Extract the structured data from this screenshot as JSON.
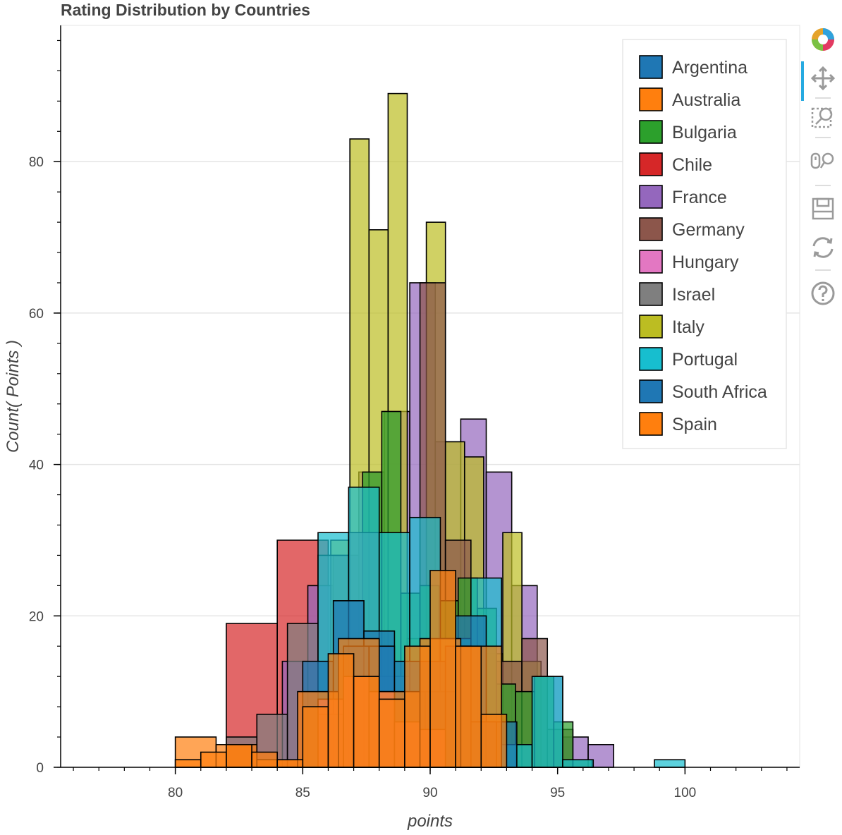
{
  "chart_data": {
    "type": "bar",
    "title": "Rating Distribution by Countries",
    "xlabel": "points",
    "ylabel": "Count( Points )",
    "xlim": [
      75.5,
      104.5
    ],
    "ylim": [
      0,
      98
    ],
    "xticks": [
      80,
      85,
      90,
      95,
      100
    ],
    "yticks": [
      0,
      20,
      40,
      60,
      80
    ],
    "grid": "horizontal",
    "legend_position": "top-right",
    "bar_outline": "#000000",
    "series": [
      {
        "name": "Chile",
        "color": "#d62728",
        "bins": [
          [
            82,
            84,
            19
          ],
          [
            84,
            86,
            30
          ]
        ]
      },
      {
        "name": "France",
        "color": "#9467bd",
        "bins": [
          [
            84.2,
            85.2,
            14
          ],
          [
            85.2,
            86.2,
            24
          ],
          [
            86.2,
            87.2,
            28
          ],
          [
            87.2,
            88.2,
            39
          ],
          [
            88.2,
            89.2,
            47
          ],
          [
            89.2,
            90.2,
            64
          ],
          [
            90.2,
            91.2,
            43
          ],
          [
            91.2,
            92.2,
            46
          ],
          [
            92.2,
            93.2,
            39
          ],
          [
            93.2,
            94.2,
            24
          ],
          [
            94.2,
            95.2,
            12
          ],
          [
            95.2,
            96.2,
            4
          ],
          [
            96.2,
            97.2,
            3
          ]
        ]
      },
      {
        "name": "Italy",
        "color": "#bcbd22",
        "bins": [
          [
            86.1,
            86.85,
            30
          ],
          [
            86.85,
            87.6,
            83
          ],
          [
            87.6,
            88.35,
            71
          ],
          [
            88.35,
            89.1,
            89
          ],
          [
            89.1,
            89.85,
            17
          ],
          [
            89.85,
            90.6,
            72
          ],
          [
            90.6,
            91.35,
            43
          ],
          [
            91.35,
            92.1,
            41
          ],
          [
            92.1,
            92.85,
            15
          ],
          [
            92.85,
            93.6,
            31
          ],
          [
            93.6,
            94.35,
            14
          ]
        ]
      },
      {
        "name": "Germany",
        "color": "#8c564b",
        "bins": [
          [
            89.6,
            90.6,
            64
          ],
          [
            90.6,
            91.6,
            30
          ],
          [
            91.6,
            92.6,
            16
          ],
          [
            92.6,
            93.6,
            14
          ],
          [
            93.6,
            94.6,
            17
          ],
          [
            94.6,
            95.6,
            5
          ]
        ]
      },
      {
        "name": "Bulgaria",
        "color": "#2ca02c",
        "bins": [
          [
            86.6,
            87.35,
            14
          ],
          [
            87.35,
            88.1,
            39
          ],
          [
            88.1,
            88.85,
            47
          ],
          [
            88.85,
            89.6,
            23
          ],
          [
            89.6,
            90.35,
            24
          ],
          [
            90.35,
            91.1,
            22
          ],
          [
            91.1,
            91.85,
            25
          ],
          [
            91.85,
            92.6,
            21
          ],
          [
            92.6,
            93.35,
            11
          ],
          [
            93.35,
            94.1,
            10
          ],
          [
            94.1,
            94.85,
            12
          ],
          [
            94.85,
            95.6,
            6
          ],
          [
            95.6,
            96.35,
            1
          ]
        ]
      },
      {
        "name": "Israel",
        "color": "#7f7f7f",
        "bins": [
          [
            82,
            83.2,
            4
          ],
          [
            83.2,
            84.4,
            7
          ],
          [
            84.4,
            85.6,
            19
          ],
          [
            85.6,
            86.8,
            28
          ],
          [
            86.8,
            88,
            31
          ],
          [
            88,
            89.2,
            12
          ],
          [
            89.2,
            90.4,
            7
          ]
        ]
      },
      {
        "name": "Portugal",
        "color": "#17becf",
        "bins": [
          [
            85.6,
            86.8,
            31
          ],
          [
            86.8,
            88,
            37
          ],
          [
            88,
            89.2,
            31
          ],
          [
            89.2,
            90.4,
            33
          ],
          [
            90.4,
            91.6,
            17
          ],
          [
            91.6,
            92.8,
            25
          ],
          [
            92.8,
            94,
            3
          ],
          [
            94,
            95.2,
            12
          ],
          [
            95.2,
            96.4,
            1
          ],
          [
            98.8,
            100,
            1
          ]
        ]
      },
      {
        "name": "Argentina",
        "color": "#1f77b4",
        "bins": [
          [
            85,
            86.2,
            14
          ],
          [
            86.2,
            87.4,
            22
          ],
          [
            87.4,
            88.6,
            18
          ],
          [
            88.6,
            89.8,
            10
          ],
          [
            89.8,
            91,
            10
          ],
          [
            91,
            92.2,
            20
          ],
          [
            92.2,
            93.4,
            6
          ]
        ]
      },
      {
        "name": "South Africa",
        "color": "#1f77b4",
        "bins": [
          [
            85.6,
            86.6,
            7
          ],
          [
            86.6,
            87.6,
            16
          ],
          [
            87.6,
            88.6,
            16
          ],
          [
            88.6,
            89.6,
            14
          ],
          [
            89.6,
            90.6,
            14
          ],
          [
            90.6,
            91.6,
            16
          ],
          [
            91.6,
            92.6,
            6
          ]
        ]
      },
      {
        "name": "Hungary",
        "color": "#e377c2",
        "bins": [
          [
            85.6,
            86.6,
            9
          ],
          [
            86.6,
            87.6,
            12
          ],
          [
            87.6,
            88.6,
            10
          ],
          [
            88.6,
            89.6,
            6
          ],
          [
            89.6,
            90.6,
            5
          ]
        ]
      },
      {
        "name": "Australia",
        "color": "#ff7f0e",
        "bins": [
          [
            80,
            81.6,
            4
          ],
          [
            81.6,
            83.2,
            3
          ],
          [
            83.2,
            84.8,
            1
          ],
          [
            84.8,
            86.4,
            10
          ],
          [
            86.4,
            88,
            17
          ],
          [
            88,
            89.6,
            10
          ],
          [
            89.6,
            91.2,
            17
          ],
          [
            91.2,
            92.8,
            16
          ]
        ]
      },
      {
        "name": "Spain",
        "color": "#ff7f0e",
        "bins": [
          [
            80,
            81,
            1
          ],
          [
            81,
            82,
            2
          ],
          [
            82,
            83,
            3
          ],
          [
            83,
            84,
            2
          ],
          [
            84,
            85,
            1
          ],
          [
            85,
            86,
            8
          ],
          [
            86,
            87,
            15
          ],
          [
            87,
            88,
            12
          ],
          [
            88,
            89,
            9
          ],
          [
            89,
            90,
            16
          ],
          [
            90,
            91,
            26
          ],
          [
            91,
            92,
            16
          ],
          [
            92,
            93,
            7
          ]
        ]
      }
    ]
  },
  "legend": {
    "items": [
      {
        "label": "Argentina",
        "color": "#1f77b4"
      },
      {
        "label": "Australia",
        "color": "#ff7f0e"
      },
      {
        "label": "Bulgaria",
        "color": "#2ca02c"
      },
      {
        "label": "Chile",
        "color": "#d62728"
      },
      {
        "label": "France",
        "color": "#9467bd"
      },
      {
        "label": "Germany",
        "color": "#8c564b"
      },
      {
        "label": "Hungary",
        "color": "#e377c2"
      },
      {
        "label": "Israel",
        "color": "#7f7f7f"
      },
      {
        "label": "Italy",
        "color": "#bcbd22"
      },
      {
        "label": "Portugal",
        "color": "#17becf"
      },
      {
        "label": "South Africa",
        "color": "#1f77b4"
      },
      {
        "label": "Spain",
        "color": "#ff7f0e"
      }
    ]
  },
  "toolbar": {
    "tools": [
      "bokeh-logo-icon",
      "pan-icon",
      "box-zoom-icon",
      "wheel-zoom-icon",
      "save-icon",
      "reset-icon",
      "help-icon"
    ],
    "active_tool": "pan-icon"
  }
}
